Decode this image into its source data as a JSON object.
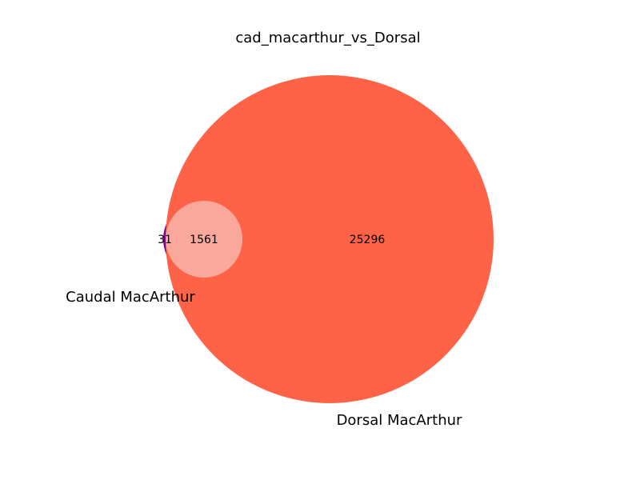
{
  "title": "cad_macarthur_vs_Dorsal",
  "sets": [
    {
      "name": "Caudal MacArthur",
      "only_count": "31",
      "color": "#800080"
    },
    {
      "name": "Dorsal MacArthur",
      "only_count": "25296",
      "color": "#ff6347"
    }
  ],
  "intersection": {
    "count": "1561",
    "color": "#f9a89b"
  }
}
